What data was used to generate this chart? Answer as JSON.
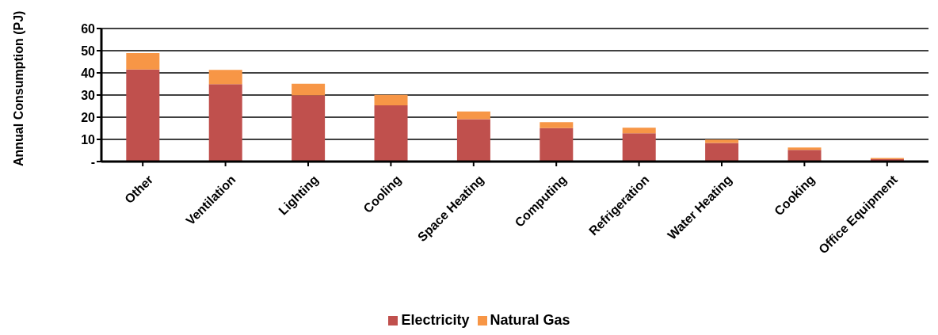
{
  "chart_data": {
    "type": "bar",
    "stacked": true,
    "ylabel": "Annual Consumption (PJ)",
    "categories": [
      "Other",
      "Ventilation",
      "Lighting",
      "Cooling",
      "Space Heating",
      "Computing",
      "Refrigeration",
      "Water Heating",
      "Cooking",
      "Office Equipment"
    ],
    "series": [
      {
        "name": "Electricity",
        "color": "#c0504d",
        "values": [
          41.5,
          34.9,
          29.9,
          25.4,
          19.1,
          15.1,
          12.8,
          8.4,
          5.3,
          1.1
        ]
      },
      {
        "name": "Natural Gas",
        "color": "#f79646",
        "values": [
          7.4,
          6.4,
          5.2,
          4.7,
          3.5,
          2.7,
          2.5,
          1.5,
          1.0,
          0.5
        ]
      }
    ],
    "ylim": [
      0,
      60
    ],
    "yticks": [
      {
        "value": 0,
        "label": "-"
      },
      10,
      20,
      30,
      40,
      50,
      60
    ],
    "grid": "y",
    "legend": "bottom"
  }
}
